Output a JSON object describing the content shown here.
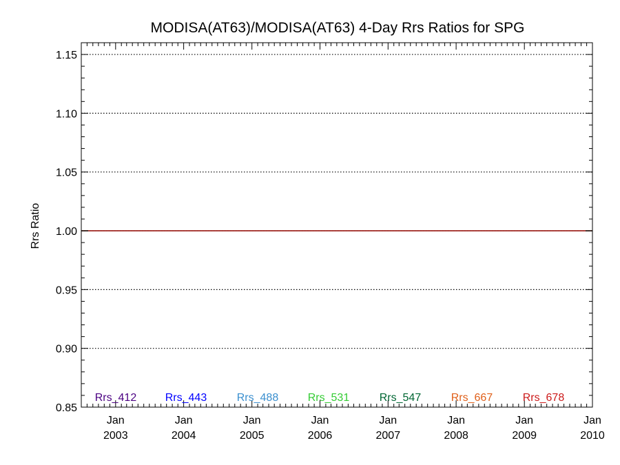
{
  "chart_data": {
    "type": "line",
    "title": "MODISA(AT63)/MODISA(AT63) 4-Day Rrs Ratios for SPG",
    "xlabel": "",
    "ylabel": "Rrs Ratio",
    "ylim": [
      0.85,
      1.16
    ],
    "xlim": [
      "2002-07-01",
      "2010-01-01"
    ],
    "y_ticks": [
      0.85,
      0.9,
      0.95,
      1.0,
      1.05,
      1.1,
      1.15
    ],
    "y_tick_labels": [
      "0.85",
      "0.90",
      "0.95",
      "1.00",
      "1.05",
      "1.10",
      "1.15"
    ],
    "x_ticks": [
      {
        "date": "2003-01-01",
        "line1": "Jan",
        "line2": "2003"
      },
      {
        "date": "2004-01-01",
        "line1": "Jan",
        "line2": "2004"
      },
      {
        "date": "2005-01-01",
        "line1": "Jan",
        "line2": "2005"
      },
      {
        "date": "2006-01-01",
        "line1": "Jan",
        "line2": "2006"
      },
      {
        "date": "2007-01-01",
        "line1": "Jan",
        "line2": "2007"
      },
      {
        "date": "2008-01-01",
        "line1": "Jan",
        "line2": "2008"
      },
      {
        "date": "2009-01-01",
        "line1": "Jan",
        "line2": "2009"
      },
      {
        "date": "2010-01-01",
        "line1": "Jan",
        "line2": "2010"
      }
    ],
    "grid": "dotted horizontal at major y ticks",
    "legend_position": "bottom",
    "series": [
      {
        "name": "Rrs_412",
        "color": "#4b0082",
        "x": [
          "2002-07-01",
          "2010-01-01"
        ],
        "y": [
          1.0,
          1.0
        ]
      },
      {
        "name": "Rrs_443",
        "color": "#0000ff",
        "x": [
          "2002-07-01",
          "2010-01-01"
        ],
        "y": [
          1.0,
          1.0
        ]
      },
      {
        "name": "Rrs_488",
        "color": "#3a8fcf",
        "x": [
          "2002-07-01",
          "2010-01-01"
        ],
        "y": [
          1.0,
          1.0
        ]
      },
      {
        "name": "Rrs_531",
        "color": "#33cc33",
        "x": [
          "2002-07-01",
          "2010-01-01"
        ],
        "y": [
          1.0,
          1.0
        ]
      },
      {
        "name": "Rrs_547",
        "color": "#006633",
        "x": [
          "2002-07-01",
          "2010-01-01"
        ],
        "y": [
          1.0,
          1.0
        ]
      },
      {
        "name": "Rrs_667",
        "color": "#e0601a",
        "x": [
          "2002-07-01",
          "2010-01-01"
        ],
        "y": [
          1.0,
          1.0
        ]
      },
      {
        "name": "Rrs_678",
        "color": "#cc1a1a",
        "x": [
          "2002-07-01",
          "2010-01-01"
        ],
        "y": [
          1.0,
          1.0
        ]
      }
    ]
  }
}
